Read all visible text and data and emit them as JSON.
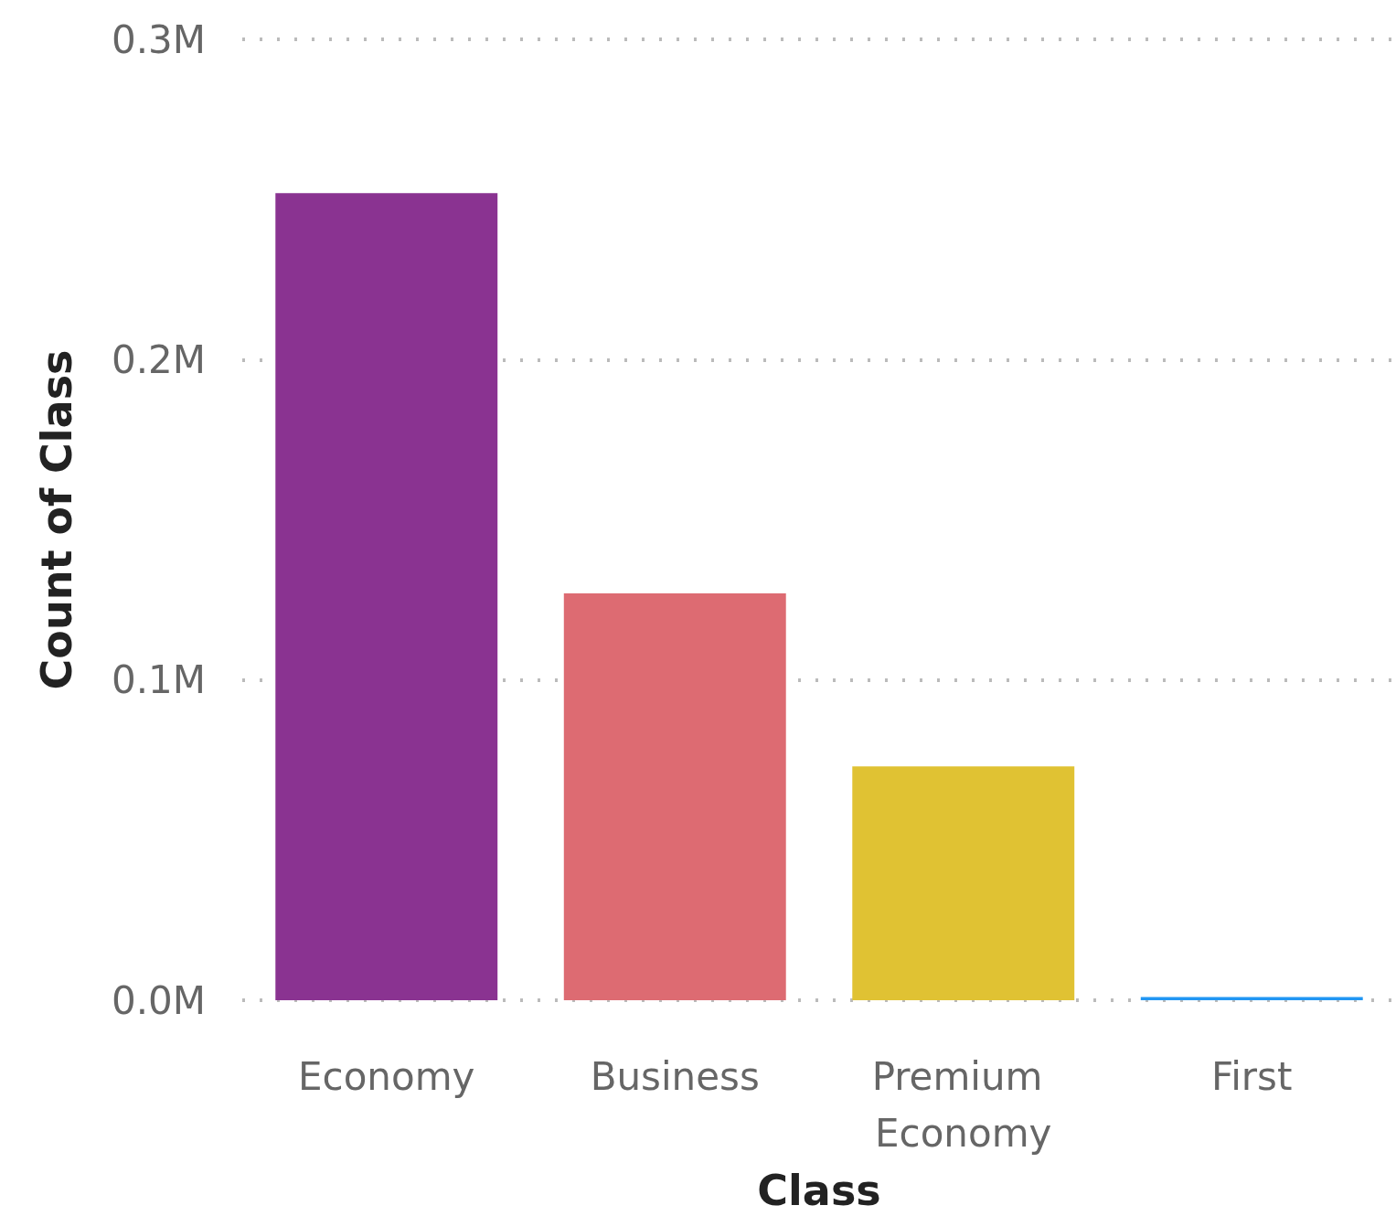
{
  "chart_data": {
    "type": "bar",
    "xlabel": "Class",
    "ylabel": "Count of Class",
    "categories": [
      "Economy",
      "Business",
      "Premium Economy",
      "First"
    ],
    "values": [
      252000,
      127000,
      73000,
      1000
    ],
    "colors": [
      "#8a3391",
      "#dd6b72",
      "#e0c233",
      "#2196f3"
    ],
    "ylim": [
      0,
      300000
    ],
    "yticks": [
      {
        "value": 0,
        "label": "0.0M"
      },
      {
        "value": 100000,
        "label": "0.1M"
      },
      {
        "value": 200000,
        "label": "0.2M"
      },
      {
        "value": 300000,
        "label": "0.3M"
      }
    ],
    "grid": "y"
  }
}
